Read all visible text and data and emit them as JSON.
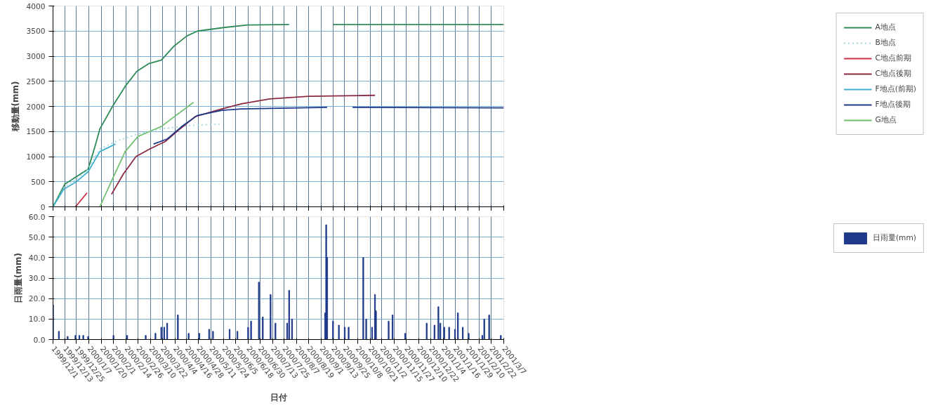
{
  "chart_data": [
    {
      "type": "line",
      "ylabel": "移動量(mm)",
      "xlim": [
        "1999-12-01",
        "2001-03-07"
      ],
      "ylim": [
        0,
        4000
      ],
      "yticks": [
        0,
        500,
        1000,
        1500,
        2000,
        2500,
        3000,
        3500,
        4000
      ],
      "xticks": [
        {
          "value": "1999-12-01",
          "label": null
        },
        {
          "value": "1999-12-13",
          "label": null
        },
        {
          "value": "1999-12-25",
          "label": null
        },
        {
          "value": "2000-01-07",
          "label": null
        },
        {
          "value": "2000-01-20",
          "label": null
        },
        {
          "value": "2000-02-01",
          "label": null
        },
        {
          "value": "2000-02-14",
          "label": null
        },
        {
          "value": "2000-02-26",
          "label": null
        },
        {
          "value": "2000-03-10",
          "label": null
        },
        {
          "value": "2000-03-22",
          "label": null
        },
        {
          "value": "2000-04-04",
          "label": null
        },
        {
          "value": "2000-04-16",
          "label": null
        },
        {
          "value": "2000-04-28",
          "label": null
        },
        {
          "value": "2000-05-11",
          "label": null
        },
        {
          "value": "2000-05-24",
          "label": null
        },
        {
          "value": "2000-06-05",
          "label": null
        },
        {
          "value": "2000-06-18",
          "label": null
        },
        {
          "value": "2000-06-30",
          "label": null
        },
        {
          "value": "2000-07-13",
          "label": null
        },
        {
          "value": "2000-07-25",
          "label": null
        },
        {
          "value": "2000-08-07",
          "label": null
        },
        {
          "value": "2000-08-19",
          "label": null
        },
        {
          "value": "2000-09-01",
          "label": null
        },
        {
          "value": "2000-09-13",
          "label": null
        },
        {
          "value": "2000-09-25",
          "label": null
        },
        {
          "value": "2000-10-08",
          "label": null
        },
        {
          "value": "2000-10-21",
          "label": null
        },
        {
          "value": "2000-11-02",
          "label": null
        },
        {
          "value": "2000-11-15",
          "label": null
        },
        {
          "value": "2000-11-27",
          "label": null
        },
        {
          "value": "2000-12-10",
          "label": null
        },
        {
          "value": "2000-12-22",
          "label": null
        },
        {
          "value": "2001-01-04",
          "label": null
        },
        {
          "value": "2001-01-16",
          "label": null
        },
        {
          "value": "2001-01-29",
          "label": null
        },
        {
          "value": "2001-02-10",
          "label": null
        },
        {
          "value": "2001-02-22",
          "label": null
        },
        {
          "value": "2001-03-07",
          "label": null
        }
      ],
      "tick_labels": "y",
      "grid": true,
      "legend": "right",
      "marker": "none",
      "series": [
        {
          "name": "A地点",
          "color": "#2e8b57",
          "x": [
            "1999-12-01",
            "1999-12-13",
            "1999-12-25",
            "2000-01-06",
            "2000-01-13",
            "2000-01-18",
            "2000-01-31",
            "2000-02-13",
            "2000-02-25",
            "2000-03-08",
            "2000-03-21",
            "2000-04-03",
            "2000-04-16",
            "2000-04-27",
            "2000-05-24",
            "2000-06-17",
            "2000-07-30",
            "2000-08-15",
            "2000-09-13",
            "2001-03-07"
          ],
          "values": [
            0,
            450,
            600,
            750,
            1200,
            1550,
            2000,
            2400,
            2700,
            2850,
            2920,
            3200,
            3400,
            3500,
            3570,
            3620,
            3630,
            null,
            3630,
            3630
          ]
        },
        {
          "name": "B地点",
          "color": "#a0d8e0",
          "line_style": "dotted",
          "x": [
            "1999-12-01",
            "1999-12-13",
            "1999-12-25",
            "2000-01-06",
            "2000-01-18",
            "2000-02-03",
            "2000-02-26",
            "2000-03-21",
            "2000-04-19",
            "2000-05-22"
          ],
          "values": [
            0,
            400,
            550,
            750,
            1150,
            1300,
            1450,
            1550,
            1620,
            1650
          ]
        },
        {
          "name": "C地点前期",
          "color": "#cc3344",
          "x": [
            "1999-12-24",
            "2000-01-05"
          ],
          "values": [
            0,
            280
          ]
        },
        {
          "name": "C地点後期",
          "color": "#8b2a40",
          "x": [
            "2000-01-30",
            "2000-02-11",
            "2000-02-24",
            "2000-03-09",
            "2000-03-25",
            "2000-04-09",
            "2000-04-25",
            "2000-05-22",
            "2000-06-11",
            "2000-07-10",
            "2000-08-19",
            "2000-10-26"
          ],
          "values": [
            250,
            650,
            1000,
            1150,
            1300,
            1550,
            1800,
            1950,
            2050,
            2150,
            2200,
            2220
          ]
        },
        {
          "name": "F地点(前期)",
          "color": "#40b0d0",
          "x": [
            "1999-12-01",
            "1999-12-12",
            "1999-12-25",
            "2000-01-06",
            "2000-01-18",
            "2000-02-03"
          ],
          "values": [
            0,
            350,
            500,
            700,
            1100,
            1250
          ]
        },
        {
          "name": "F地点後期",
          "color": "#1f3a8a",
          "x": [
            "2000-03-13",
            "2000-03-27",
            "2000-04-11",
            "2000-04-27",
            "2000-05-22",
            "2000-06-11",
            "2000-09-07",
            "2000-09-20",
            "2000-10-03",
            "2001-03-07"
          ],
          "values": [
            1250,
            1350,
            1600,
            1820,
            1920,
            1950,
            1980,
            null,
            1980,
            1970
          ]
        },
        {
          "name": "G地点",
          "color": "#70c070",
          "x": [
            "2000-01-18",
            "2000-02-01",
            "2000-02-13",
            "2000-02-26",
            "2000-03-09",
            "2000-03-21",
            "2000-04-07",
            "2000-04-23"
          ],
          "values": [
            0,
            600,
            1100,
            1400,
            1500,
            1600,
            1850,
            2080
          ]
        }
      ]
    },
    {
      "type": "bar",
      "ylabel": "日雨量(mm)",
      "xlabel": "日付",
      "xlim": [
        "1999-12-01",
        "2001-03-07"
      ],
      "ylim": [
        0,
        60
      ],
      "yticks": [
        {
          "value": 0,
          "label": "0.0"
        },
        {
          "value": 10,
          "label": "10.0"
        },
        {
          "value": 20,
          "label": "20.0"
        },
        {
          "value": 30,
          "label": "30.0"
        },
        {
          "value": 40,
          "label": "40.0"
        },
        {
          "value": 50,
          "label": "50.0"
        },
        {
          "value": 60,
          "label": "60.0"
        }
      ],
      "xticks": [
        {
          "value": "1999-12-01",
          "label": "1999/12/1"
        },
        {
          "value": "1999-12-13",
          "label": "1999/12/13"
        },
        {
          "value": "1999-12-25",
          "label": "1999/12/25"
        },
        {
          "value": "2000-01-07",
          "label": "2000/1/7"
        },
        {
          "value": "2000-01-20",
          "label": "2000/1/20"
        },
        {
          "value": "2000-02-01",
          "label": "2000/2/1"
        },
        {
          "value": "2000-02-14",
          "label": "2000/2/14"
        },
        {
          "value": "2000-02-26",
          "label": "2000/2/26"
        },
        {
          "value": "2000-03-10",
          "label": "2000/3/10"
        },
        {
          "value": "2000-03-22",
          "label": "2000/3/22"
        },
        {
          "value": "2000-04-04",
          "label": "2000/4/4"
        },
        {
          "value": "2000-04-16",
          "label": "2000/4/16"
        },
        {
          "value": "2000-04-28",
          "label": "2000/4/28"
        },
        {
          "value": "2000-05-11",
          "label": "2000/5/11"
        },
        {
          "value": "2000-05-24",
          "label": "2000/5/24"
        },
        {
          "value": "2000-06-05",
          "label": "2000/6/5"
        },
        {
          "value": "2000-06-18",
          "label": "2000/6/18"
        },
        {
          "value": "2000-06-30",
          "label": "2000/6/30"
        },
        {
          "value": "2000-07-13",
          "label": "2000/7/13"
        },
        {
          "value": "2000-07-25",
          "label": "2000/7/25"
        },
        {
          "value": "2000-08-07",
          "label": "2000/8/7"
        },
        {
          "value": "2000-08-19",
          "label": "2000/8/19"
        },
        {
          "value": "2000-09-01",
          "label": "2000/9/1"
        },
        {
          "value": "2000-09-13",
          "label": "2000/9/13"
        },
        {
          "value": "2000-09-25",
          "label": "2000/9/25"
        },
        {
          "value": "2000-10-08",
          "label": "2000/10/8"
        },
        {
          "value": "2000-10-21",
          "label": "2000/10/21"
        },
        {
          "value": "2000-11-02",
          "label": "2000/11/2"
        },
        {
          "value": "2000-11-15",
          "label": "2000/11/15"
        },
        {
          "value": "2000-11-27",
          "label": "2000/11/27"
        },
        {
          "value": "2000-12-10",
          "label": "2000/12/10"
        },
        {
          "value": "2000-12-22",
          "label": "2000/12/22"
        },
        {
          "value": "2001-01-04",
          "label": "2001/1/4"
        },
        {
          "value": "2001-01-16",
          "label": "2001/1/16"
        },
        {
          "value": "2001-01-29",
          "label": "2001/1/29"
        },
        {
          "value": "2001-02-10",
          "label": "2001/2/10"
        },
        {
          "value": "2001-02-22",
          "label": "2001/2/22"
        },
        {
          "value": "2001-03-07",
          "label": "2001/3/7"
        }
      ],
      "grid": true,
      "legend": "right",
      "series": [
        {
          "name": "日雨量(mm)",
          "color": "#1f3a8a",
          "x": [
            "1999-12-01",
            "1999-12-07",
            "1999-12-16",
            "1999-12-24",
            "1999-12-28",
            "2000-01-01",
            "2000-01-06",
            "2000-02-01",
            "2000-02-15",
            "2000-03-05",
            "2000-03-15",
            "2000-03-21",
            "2000-03-24",
            "2000-03-27",
            "2000-04-07",
            "2000-04-18",
            "2000-04-29",
            "2000-05-09",
            "2000-05-13",
            "2000-05-30",
            "2000-06-07",
            "2000-06-18",
            "2000-06-21",
            "2000-06-29",
            "2000-07-03",
            "2000-07-11",
            "2000-07-16",
            "2000-07-28",
            "2000-07-30",
            "2000-08-02",
            "2000-09-05",
            "2000-09-06",
            "2000-09-07",
            "2000-09-13",
            "2000-09-19",
            "2000-09-25",
            "2000-09-29",
            "2000-10-14",
            "2000-10-17",
            "2000-10-23",
            "2000-10-26",
            "2000-10-27",
            "2000-11-09",
            "2000-11-13",
            "2000-11-26",
            "2000-12-18",
            "2000-12-26",
            "2000-12-30",
            "2001-01-01",
            "2001-01-05",
            "2001-01-10",
            "2001-01-16",
            "2001-01-19",
            "2001-01-24",
            "2001-01-30",
            "2001-02-13",
            "2001-02-15",
            "2001-02-20",
            "2001-03-04"
          ],
          "values": [
            17,
            4,
            1.5,
            2,
            2,
            2,
            1.5,
            2,
            2,
            2,
            3,
            6,
            6,
            8,
            12,
            3,
            3,
            5,
            4,
            5,
            4,
            6,
            9,
            28,
            11,
            22,
            8,
            8,
            24,
            10,
            13,
            56,
            40,
            9,
            7,
            6,
            6,
            40,
            10,
            6,
            22,
            14,
            9,
            12,
            3,
            8,
            7,
            16,
            8,
            6,
            6,
            5,
            13,
            6,
            3,
            2,
            10,
            12,
            2
          ]
        }
      ]
    }
  ]
}
